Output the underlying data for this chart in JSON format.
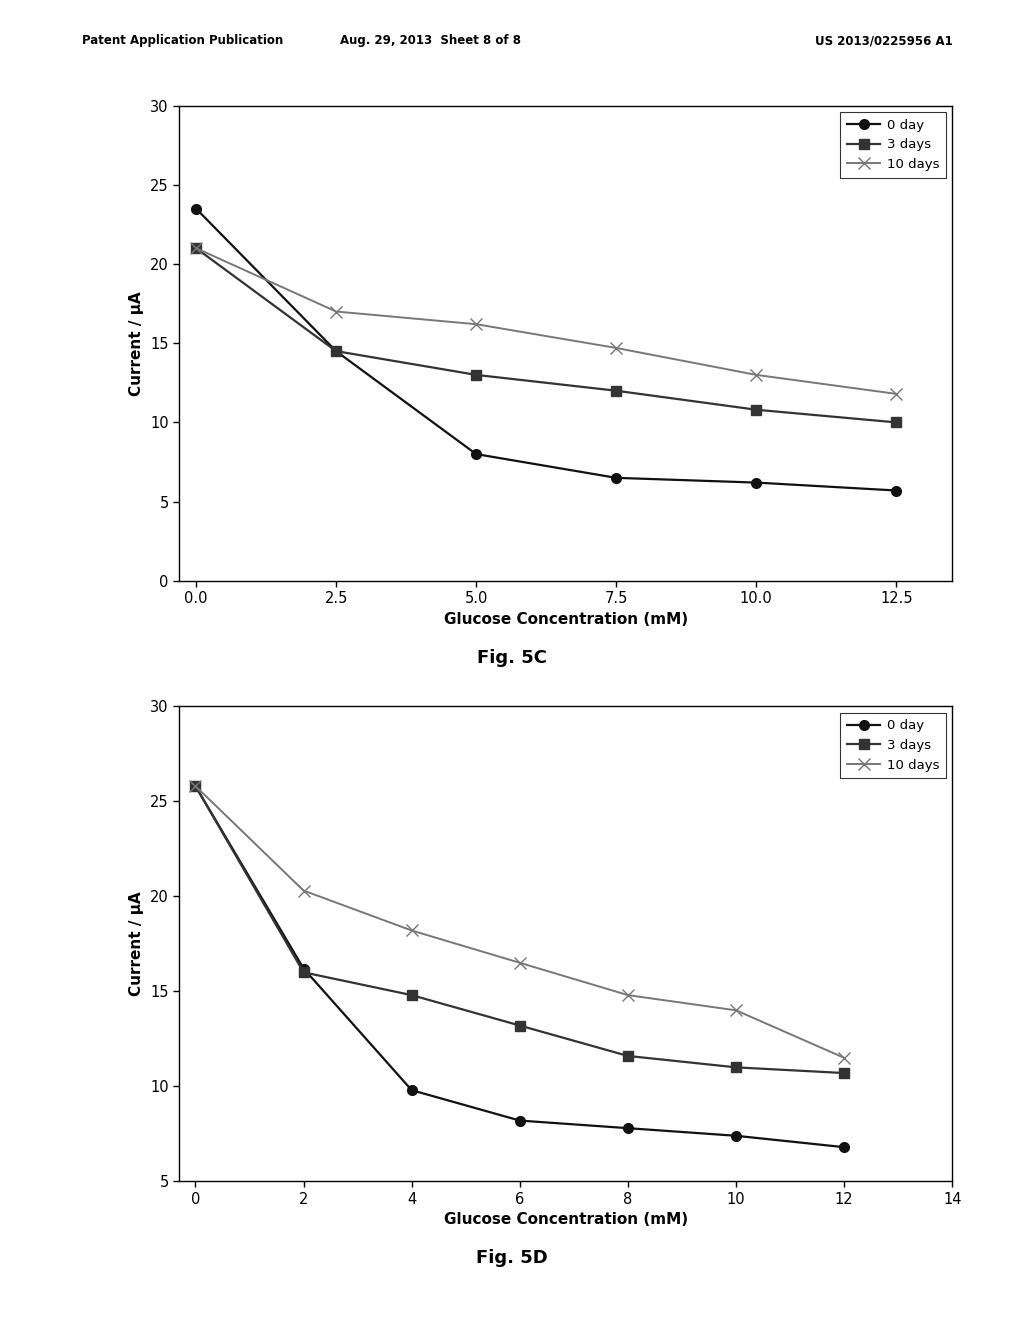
{
  "fig5c": {
    "title": "Fig. 5C",
    "xlabel": "Glucose Concentration (mM)",
    "ylabel": "Current / μA",
    "xlim": [
      -0.3,
      13.5
    ],
    "ylim": [
      0,
      30
    ],
    "xticks": [
      0,
      2.5,
      5,
      7.5,
      10,
      12.5
    ],
    "yticks": [
      0,
      5,
      10,
      15,
      20,
      25,
      30
    ],
    "series": [
      {
        "label": "0 day",
        "x": [
          0,
          2.5,
          5,
          7.5,
          10,
          12.5
        ],
        "y": [
          23.5,
          14.5,
          8.0,
          6.5,
          6.2,
          5.7
        ],
        "color": "#111111",
        "marker": "o",
        "markersize": 7,
        "linewidth": 1.6,
        "linestyle": "-"
      },
      {
        "label": "3 days",
        "x": [
          0,
          2.5,
          5,
          7.5,
          10,
          12.5
        ],
        "y": [
          21.0,
          14.5,
          13.0,
          12.0,
          10.8,
          10.0
        ],
        "color": "#333333",
        "marker": "s",
        "markersize": 7,
        "linewidth": 1.6,
        "linestyle": "-"
      },
      {
        "label": "10 days",
        "x": [
          0,
          2.5,
          5,
          7.5,
          10,
          12.5
        ],
        "y": [
          21.0,
          17.0,
          16.2,
          14.7,
          13.0,
          11.8
        ],
        "color": "#777777",
        "marker": "x",
        "markersize": 8,
        "linewidth": 1.4,
        "linestyle": "-"
      }
    ]
  },
  "fig5d": {
    "title": "Fig. 5D",
    "xlabel": "Glucose Concentration (mM)",
    "ylabel": "Current / μA",
    "xlim": [
      -0.3,
      14
    ],
    "ylim": [
      5,
      30
    ],
    "xticks": [
      0,
      2,
      4,
      6,
      8,
      10,
      12,
      14
    ],
    "yticks": [
      5,
      10,
      15,
      20,
      25,
      30
    ],
    "series": [
      {
        "label": "0 day",
        "x": [
          0,
          2,
          4,
          6,
          8,
          10,
          12
        ],
        "y": [
          25.8,
          16.2,
          9.8,
          8.2,
          7.8,
          7.4,
          6.8
        ],
        "color": "#111111",
        "marker": "o",
        "markersize": 7,
        "linewidth": 1.6,
        "linestyle": "-"
      },
      {
        "label": "3 days",
        "x": [
          0,
          2,
          4,
          6,
          8,
          10,
          12
        ],
        "y": [
          25.8,
          16.0,
          14.8,
          13.2,
          11.6,
          11.0,
          10.7
        ],
        "color": "#333333",
        "marker": "s",
        "markersize": 7,
        "linewidth": 1.6,
        "linestyle": "-"
      },
      {
        "label": "10 days",
        "x": [
          0,
          2,
          4,
          6,
          8,
          10,
          12
        ],
        "y": [
          25.8,
          20.3,
          18.2,
          16.5,
          14.8,
          14.0,
          11.5
        ],
        "color": "#777777",
        "marker": "x",
        "markersize": 8,
        "linewidth": 1.4,
        "linestyle": "-"
      }
    ]
  },
  "header_left": "Patent Application Publication",
  "header_mid": "Aug. 29, 2013  Sheet 8 of 8",
  "header_right": "US 2013/0225956 A1",
  "background_color": "#ffffff",
  "text_color": "#000000"
}
